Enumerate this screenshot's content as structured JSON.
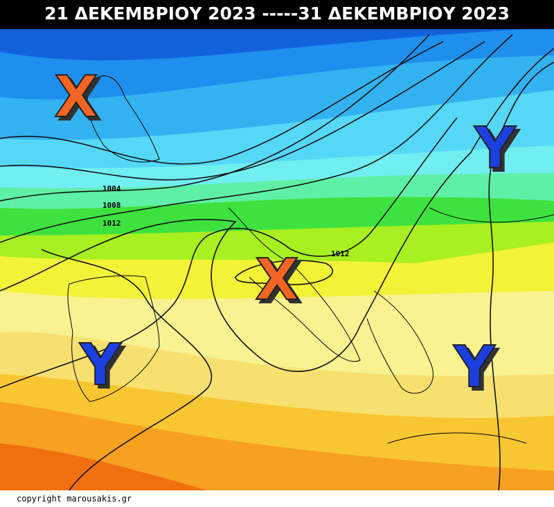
{
  "header": {
    "title": "21 ΔΕΚΕΜΒΡΙΟΥ 2023 -----31 ΔΕΚΕΜΒΡΙΟΥ 2023"
  },
  "map": {
    "pressure_centers": [
      "X",
      "Y",
      "X",
      "Y",
      "Y"
    ],
    "isobar_labels": [
      "1004",
      "1008",
      "1012",
      "1012"
    ]
  },
  "footer": {
    "copyright": "copyright marousakis.gr"
  }
}
